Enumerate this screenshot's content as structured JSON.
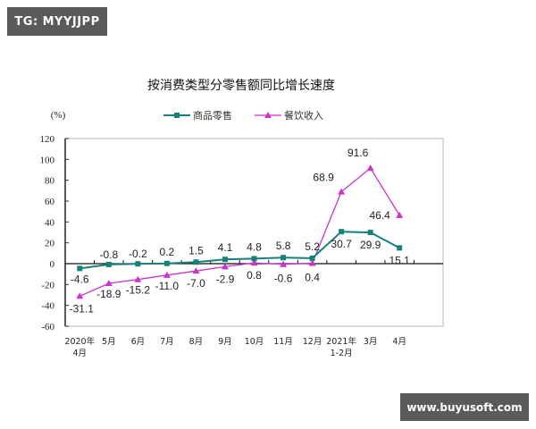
{
  "watermarks": {
    "top_left": "TG: MYYJJPP",
    "bottom_right": "www.buyusoft.com"
  },
  "colors": {
    "retail": "#17807a",
    "catering": "#cc33cc",
    "badge_bg": "#5a5a5a",
    "axis": "#333333",
    "plot_border": "#c0c0c0"
  },
  "chart_data": {
    "type": "line",
    "title": "按消费类型分零售额同比增长速度",
    "ylabel": "(%)",
    "xlabel": "",
    "ylim": [
      -60,
      120
    ],
    "yticks": [
      120,
      100,
      80,
      60,
      40,
      20,
      0,
      -20,
      -40,
      -60
    ],
    "grid": false,
    "legend_position": "top",
    "categories": [
      "2020年\n4月",
      "5月",
      "6月",
      "7月",
      "8月",
      "9月",
      "10月",
      "11月",
      "12月",
      "2021年\n1-2月",
      "3月",
      "4月"
    ],
    "category_labels": [
      [
        "2020年",
        "4月"
      ],
      [
        "5月"
      ],
      [
        "6月"
      ],
      [
        "7月"
      ],
      [
        "8月"
      ],
      [
        "9月"
      ],
      [
        "10月"
      ],
      [
        "11月"
      ],
      [
        "12月"
      ],
      [
        "2021年",
        "1-2月"
      ],
      [
        "3月"
      ],
      [
        "4月"
      ]
    ],
    "series": [
      {
        "name": "商品零售",
        "marker": "square",
        "color": "#17807a",
        "values": [
          -4.6,
          -0.8,
          -0.2,
          0.2,
          1.5,
          4.1,
          4.8,
          5.8,
          5.2,
          30.7,
          29.9,
          15.1
        ],
        "labels": [
          "-4.6",
          "-0.8",
          "-0.2",
          "0.2",
          "1.5",
          "4.1",
          "4.8",
          "5.8",
          "5.2",
          "30.7",
          "29.9",
          "15.1"
        ]
      },
      {
        "name": "餐饮收入",
        "marker": "triangle",
        "color": "#cc33cc",
        "values": [
          -31.1,
          -18.9,
          -15.2,
          -11.0,
          -7.0,
          -2.9,
          0.8,
          -0.6,
          0.4,
          68.9,
          91.6,
          46.4
        ],
        "labels": [
          "-31.1",
          "-18.9",
          "-15.2",
          "-11.0",
          "-7.0",
          "-2.9",
          "0.8",
          "-0.6",
          "0.4",
          "68.9",
          "91.6",
          "46.4"
        ]
      }
    ]
  }
}
